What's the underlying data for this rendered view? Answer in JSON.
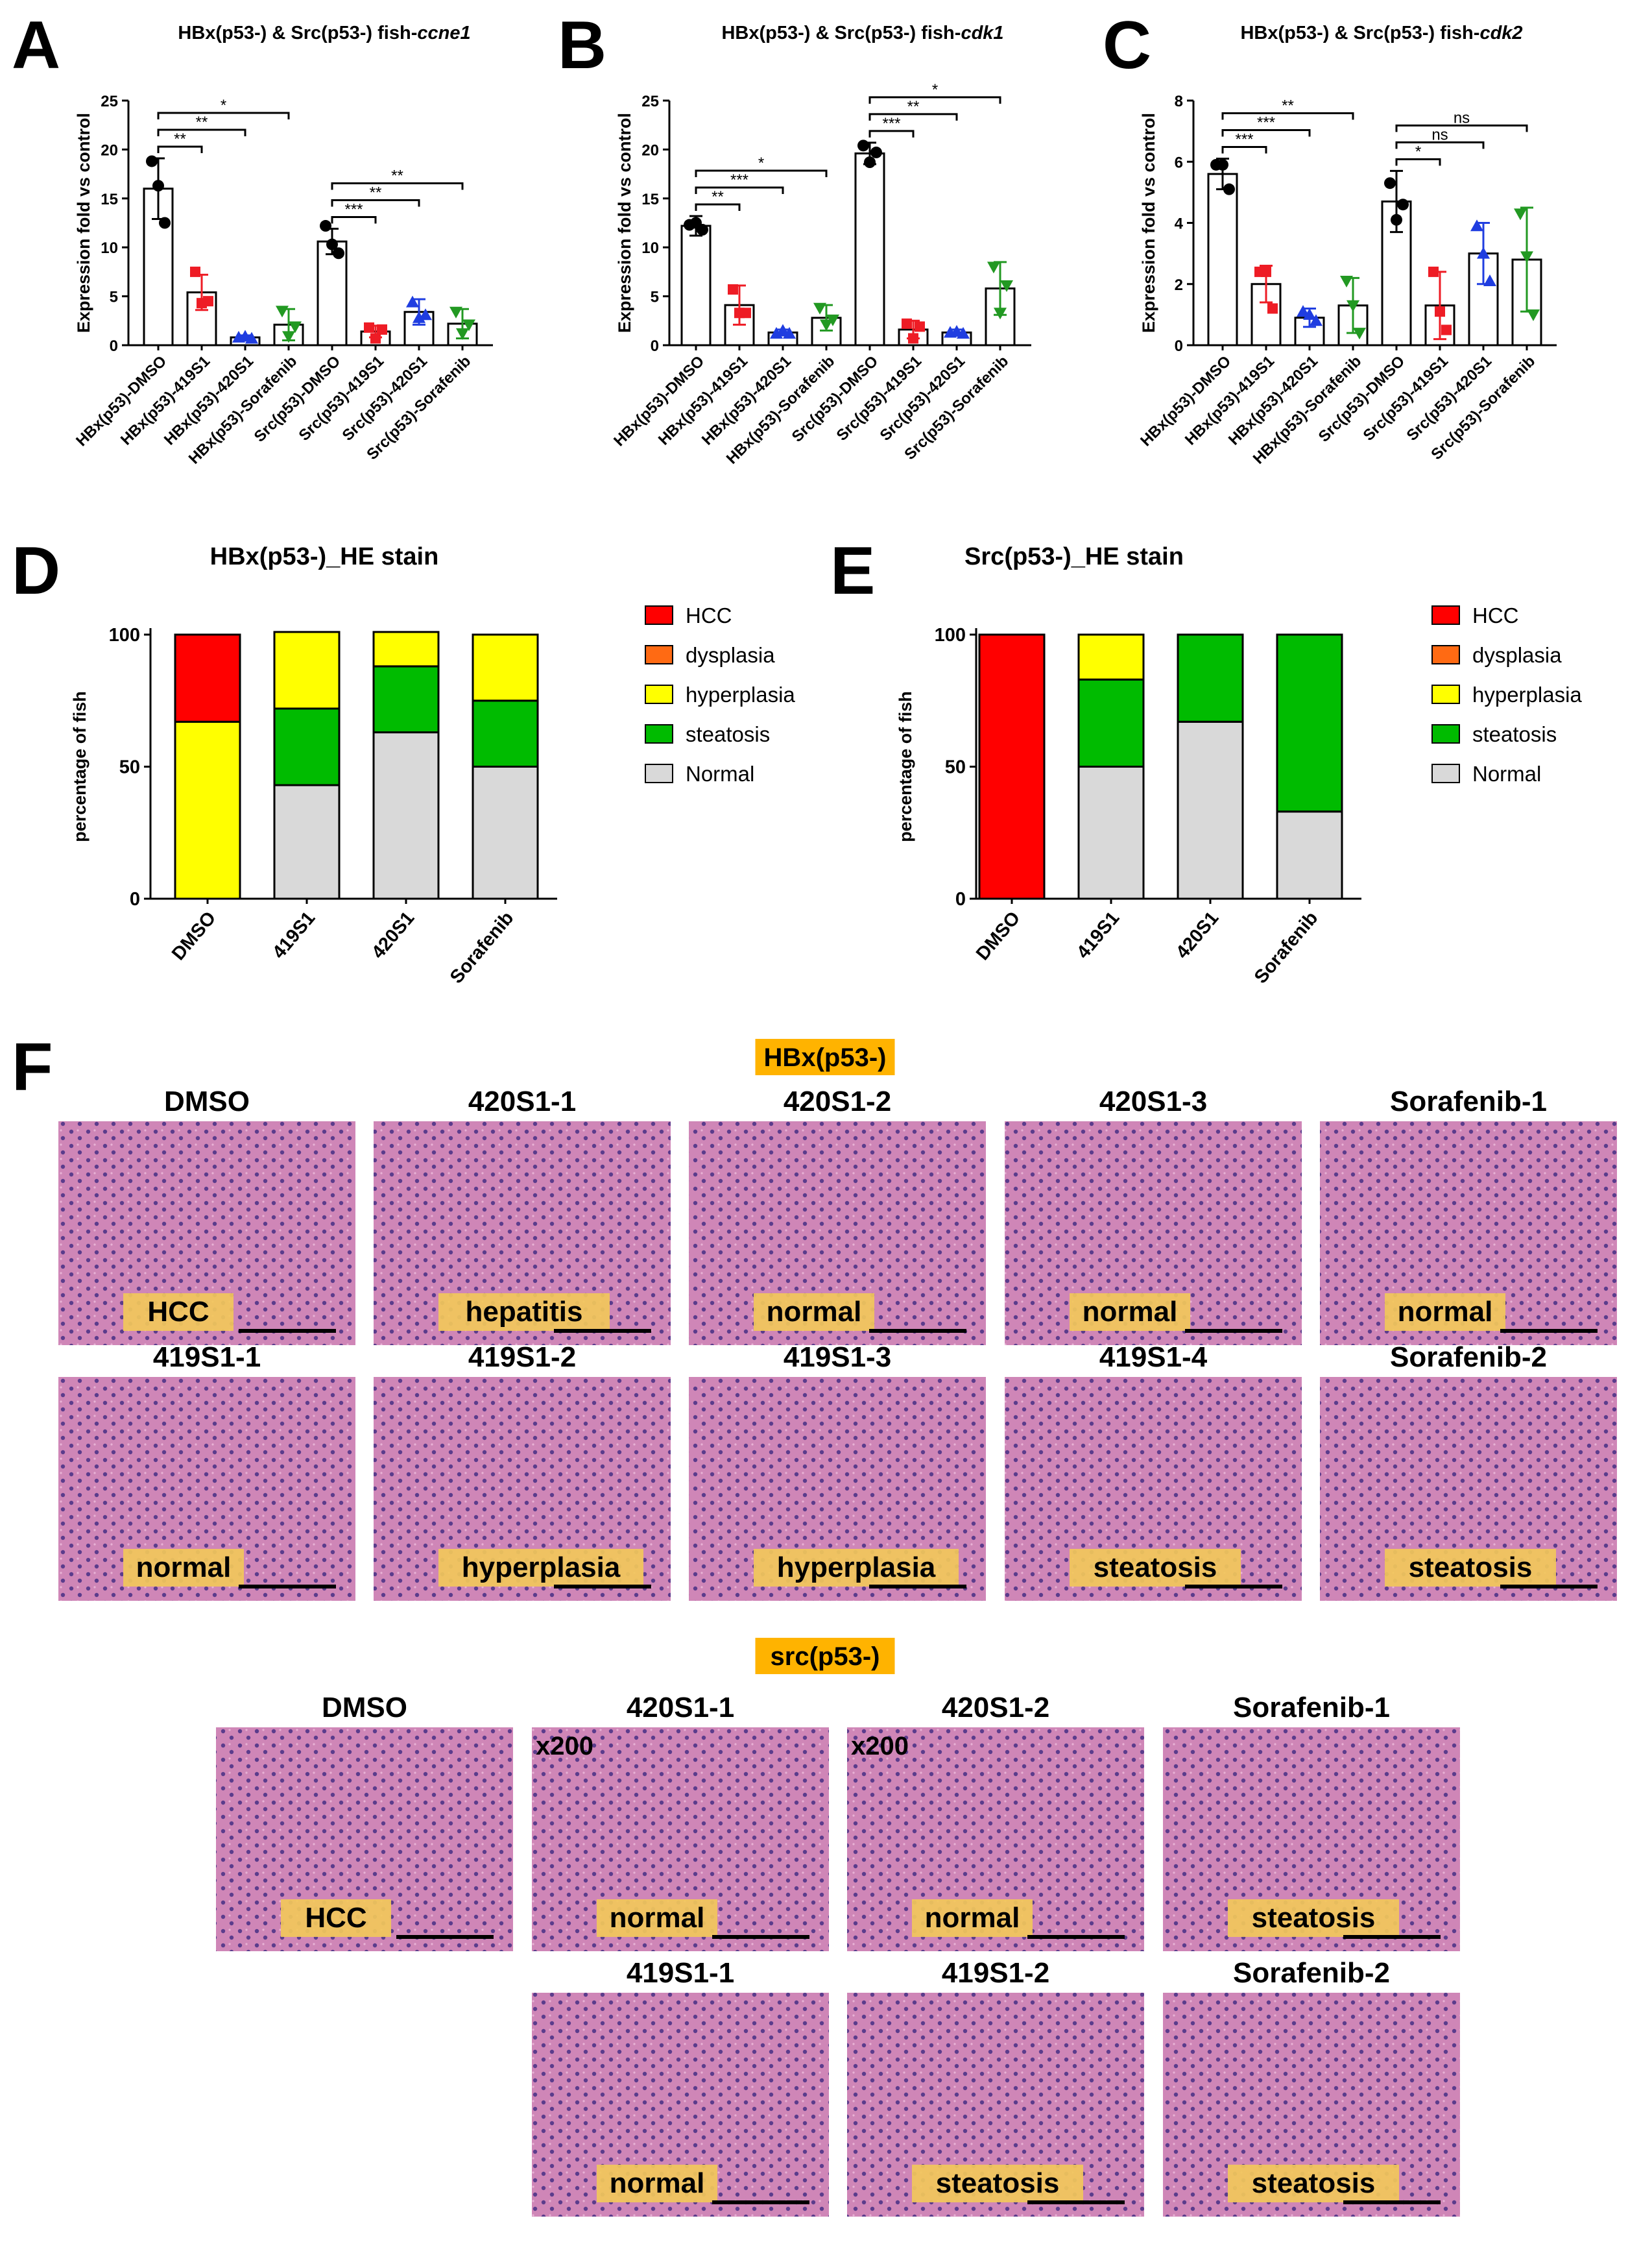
{
  "colors": {
    "HCC": "#ff0000",
    "dysplasia": "#ff6a13",
    "hyperplasia": "#ffff00",
    "steatosis": "#00bb00",
    "Normal": "#d9d9d9",
    "dmso": "#000000",
    "S419": "#ee1c25",
    "S420": "#1f3de0",
    "sorafenib": "#229922",
    "label_bg": "#f2c85a",
    "group_bg": "#ffb300",
    "tissue": "#c76aa8"
  },
  "chart_data": [
    {
      "panel": "A",
      "type": "bar",
      "title_prefix": "HBx(p53-) & Src(p53-) fish-",
      "gene": "ccne1",
      "ylabel": "Expression fold vs control",
      "ylim": [
        0,
        25
      ],
      "yticks": [
        "0",
        "5",
        "10",
        "15",
        "20",
        "25"
      ],
      "categories": [
        "HBx(p53)-DMSO",
        "HBx(p53)-419S1",
        "HBx(p53)-420S1",
        "HBx(p53)-Sorafenib",
        "Src(p53)-DMSO",
        "Src(p53)-419S1",
        "Src(p53)-420S1",
        "Src(p53)-Sorafenib"
      ],
      "values": [
        16,
        5.4,
        0.8,
        2.1,
        10.6,
        1.4,
        3.4,
        2.2
      ],
      "sd": [
        3.1,
        1.8,
        0.2,
        1.6,
        1.3,
        0.6,
        1.3,
        1.5
      ],
      "points": [
        [
          18.8,
          16.3,
          12.5
        ],
        [
          7.5,
          4.3,
          4.5
        ],
        [
          0.8,
          0.9,
          0.7
        ],
        [
          3.5,
          0.9,
          1.9
        ],
        [
          12.2,
          10.3,
          9.4
        ],
        [
          1.8,
          0.7,
          1.6
        ],
        [
          4.4,
          2.8,
          3.1
        ],
        [
          3.4,
          1.2,
          2.1
        ]
      ],
      "sig": [
        {
          "from": 0,
          "to": 1,
          "label": "**"
        },
        {
          "from": 0,
          "to": 2,
          "label": "**"
        },
        {
          "from": 0,
          "to": 3,
          "label": "*"
        },
        {
          "from": 4,
          "to": 5,
          "label": "***"
        },
        {
          "from": 4,
          "to": 6,
          "label": "**"
        },
        {
          "from": 4,
          "to": 7,
          "label": "**"
        }
      ]
    },
    {
      "panel": "B",
      "type": "bar",
      "title_prefix": "HBx(p53-) & Src(p53-) fish-",
      "gene": "cdk1",
      "ylabel": "Expression fold vs control",
      "ylim": [
        0,
        25
      ],
      "yticks": [
        "0",
        "5",
        "10",
        "15",
        "20",
        "25"
      ],
      "categories": [
        "HBx(p53)-DMSO",
        "HBx(p53)-419S1",
        "HBx(p53)-420S1",
        "HBx(p53)-Sorafenib",
        "Src(p53)-DMSO",
        "Src(p53)-419S1",
        "Src(p53)-420S1",
        "Src(p53)-Sorafenib"
      ],
      "values": [
        12.2,
        4.1,
        1.3,
        2.8,
        19.6,
        1.6,
        1.3,
        5.8
      ],
      "sd": [
        1.0,
        2.0,
        0.3,
        1.3,
        1.1,
        0.9,
        0.3,
        2.7
      ],
      "points": [
        [
          12.3,
          12.5,
          11.8
        ],
        [
          5.7,
          3.3,
          3.3
        ],
        [
          1.2,
          1.5,
          1.2
        ],
        [
          3.8,
          2.1,
          2.6
        ],
        [
          20.4,
          18.7,
          19.7
        ],
        [
          2.2,
          0.7,
          1.9
        ],
        [
          1.3,
          1.4,
          1.2
        ],
        [
          8.0,
          3.3,
          6.1
        ]
      ],
      "sig": [
        {
          "from": 0,
          "to": 1,
          "label": "**"
        },
        {
          "from": 0,
          "to": 2,
          "label": "***"
        },
        {
          "from": 0,
          "to": 3,
          "label": "*"
        },
        {
          "from": 4,
          "to": 5,
          "label": "***"
        },
        {
          "from": 4,
          "to": 6,
          "label": "**"
        },
        {
          "from": 4,
          "to": 7,
          "label": "*"
        }
      ]
    },
    {
      "panel": "C",
      "type": "bar",
      "title_prefix": "HBx(p53-) & Src(p53-) fish-",
      "gene": "cdk2",
      "ylabel": "Expression fold vs control",
      "ylim": [
        0,
        8
      ],
      "yticks": [
        "0",
        "2",
        "4",
        "6",
        "8"
      ],
      "categories": [
        "HBx(p53)-DMSO",
        "HBx(p53)-419S1",
        "HBx(p53)-420S1",
        "HBx(p53)-Sorafenib",
        "Src(p53)-DMSO",
        "Src(p53)-419S1",
        "Src(p53)-420S1",
        "Src(p53)-Sorafenib"
      ],
      "values": [
        5.6,
        2.0,
        0.9,
        1.3,
        4.7,
        1.3,
        3.0,
        2.8
      ],
      "sd": [
        0.5,
        0.6,
        0.3,
        0.9,
        1.0,
        1.1,
        1.0,
        1.7
      ],
      "points": [
        [
          5.9,
          5.9,
          5.1
        ],
        [
          2.4,
          2.4,
          1.2
        ],
        [
          1.1,
          1.0,
          0.8
        ],
        [
          2.1,
          1.3,
          0.4
        ],
        [
          5.3,
          4.1,
          4.6
        ],
        [
          2.4,
          1.1,
          0.5
        ],
        [
          3.9,
          3.0,
          2.1
        ],
        [
          4.3,
          2.9,
          1.0
        ]
      ],
      "sig": [
        {
          "from": 0,
          "to": 1,
          "label": "***"
        },
        {
          "from": 0,
          "to": 2,
          "label": "***"
        },
        {
          "from": 0,
          "to": 3,
          "label": "**"
        },
        {
          "from": 4,
          "to": 5,
          "label": "*"
        },
        {
          "from": 4,
          "to": 6,
          "label": "ns"
        },
        {
          "from": 4,
          "to": 7,
          "label": "ns"
        }
      ]
    },
    {
      "panel": "D",
      "type": "bar",
      "stacked": true,
      "title": "HBx(p53-)_HE stain",
      "ylabel": "percentage of fish",
      "ylim": [
        0,
        100
      ],
      "yticks": [
        "0",
        "50",
        "100"
      ],
      "categories": [
        "DMSO",
        "419S1",
        "420S1",
        "Sorafenib"
      ],
      "series": [
        {
          "name": "Normal",
          "values": [
            0,
            43,
            63,
            50
          ]
        },
        {
          "name": "steatosis",
          "values": [
            0,
            29,
            25,
            25
          ]
        },
        {
          "name": "hyperplasia",
          "values": [
            67,
            29,
            13,
            25
          ]
        },
        {
          "name": "dysplasia",
          "values": [
            0,
            0,
            0,
            0
          ]
        },
        {
          "name": "HCC",
          "values": [
            33,
            0,
            0,
            0
          ]
        }
      ],
      "legend": [
        "HCC",
        "dysplasia",
        "hyperplasia",
        "steatosis",
        "Normal"
      ],
      "legend_position": "right"
    },
    {
      "panel": "E",
      "type": "bar",
      "stacked": true,
      "title": "Src(p53-)_HE stain",
      "ylabel": "percentage of fish",
      "ylim": [
        0,
        100
      ],
      "yticks": [
        "0",
        "50",
        "100"
      ],
      "categories": [
        "DMSO",
        "419S1",
        "420S1",
        "Sorafenib"
      ],
      "series": [
        {
          "name": "Normal",
          "values": [
            0,
            50,
            67,
            33
          ]
        },
        {
          "name": "steatosis",
          "values": [
            0,
            33,
            33,
            67
          ]
        },
        {
          "name": "hyperplasia",
          "values": [
            0,
            17,
            0,
            0
          ]
        },
        {
          "name": "dysplasia",
          "values": [
            0,
            0,
            0,
            0
          ]
        },
        {
          "name": "HCC",
          "values": [
            100,
            0,
            0,
            0
          ]
        }
      ],
      "legend": [
        "HCC",
        "dysplasia",
        "hyperplasia",
        "steatosis",
        "Normal"
      ],
      "legend_position": "right"
    }
  ],
  "panel_f": {
    "letter": "F",
    "hbx_label": "HBx(p53-)",
    "src_label": "src(p53-)",
    "hbx_images": [
      {
        "title": "DMSO",
        "diagnosis": "HCC"
      },
      {
        "title": "420S1-1",
        "diagnosis": "hepatitis"
      },
      {
        "title": "420S1-2",
        "diagnosis": "normal"
      },
      {
        "title": "420S1-3",
        "diagnosis": "normal"
      },
      {
        "title": "Sorafenib-1",
        "diagnosis": "normal"
      },
      {
        "title": "419S1-1",
        "diagnosis": "normal"
      },
      {
        "title": "419S1-2",
        "diagnosis": "hyperplasia"
      },
      {
        "title": "419S1-3",
        "diagnosis": "hyperplasia"
      },
      {
        "title": "419S1-4",
        "diagnosis": "steatosis"
      },
      {
        "title": "Sorafenib-2",
        "diagnosis": "steatosis"
      }
    ],
    "src_images": [
      {
        "title": "DMSO",
        "diagnosis": "HCC",
        "mag": ""
      },
      {
        "title": "420S1-1",
        "diagnosis": "normal",
        "mag": "x200"
      },
      {
        "title": "420S1-2",
        "diagnosis": "normal",
        "mag": "x200"
      },
      {
        "title": "Sorafenib-1",
        "diagnosis": "steatosis",
        "mag": ""
      },
      {
        "title": "419S1-1",
        "diagnosis": "normal",
        "mag": ""
      },
      {
        "title": "419S1-2",
        "diagnosis": "steatosis",
        "mag": ""
      },
      {
        "title": "Sorafenib-2",
        "diagnosis": "steatosis",
        "mag": ""
      }
    ]
  }
}
